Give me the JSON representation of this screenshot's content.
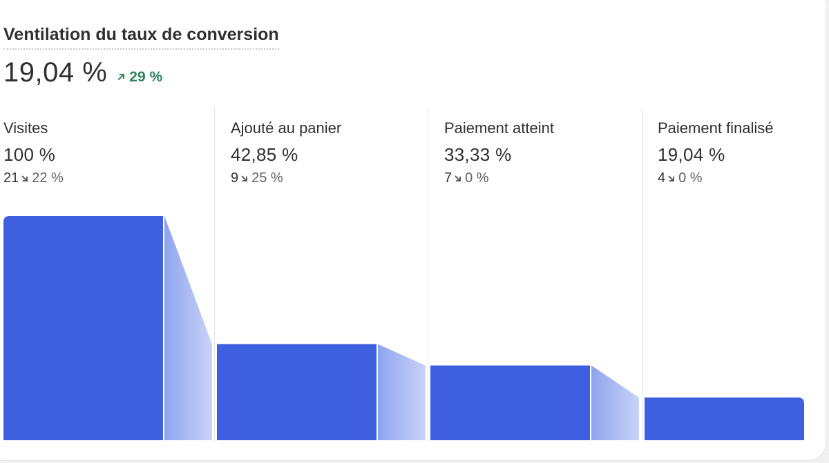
{
  "card": {
    "title": "Ventilation du taux de conversion",
    "value": "19,04 %",
    "change": "29 %",
    "change_direction": "up",
    "change_icon": "arrow-up-right-icon",
    "positive_color": "#29845a"
  },
  "colors": {
    "bar": "#3d5fe0",
    "connector_start": "#8fa4ee",
    "connector_end": "#c8d3f7"
  },
  "chart_data": {
    "type": "bar",
    "title": "Ventilation du taux de conversion",
    "categories": [
      "Visites",
      "Ajouté au panier",
      "Paiement atteint",
      "Paiement finalisé"
    ],
    "values": [
      100,
      42.85,
      33.33,
      19.04
    ],
    "ylim": [
      0,
      100
    ],
    "grid": false,
    "steps": [
      {
        "label": "Visites",
        "pct_label": "100 %",
        "pct": 100,
        "count": "21",
        "change": "22 %",
        "change_direction": "down"
      },
      {
        "label": "Ajouté au panier",
        "pct_label": "42,85 %",
        "pct": 42.85,
        "count": "9",
        "change": "25 %",
        "change_direction": "down"
      },
      {
        "label": "Paiement atteint",
        "pct_label": "33,33 %",
        "pct": 33.33,
        "count": "7",
        "change": "0 %",
        "change_direction": "down"
      },
      {
        "label": "Paiement finalisé",
        "pct_label": "19,04 %",
        "pct": 19.04,
        "count": "4",
        "change": "0 %",
        "change_direction": "down"
      }
    ]
  }
}
